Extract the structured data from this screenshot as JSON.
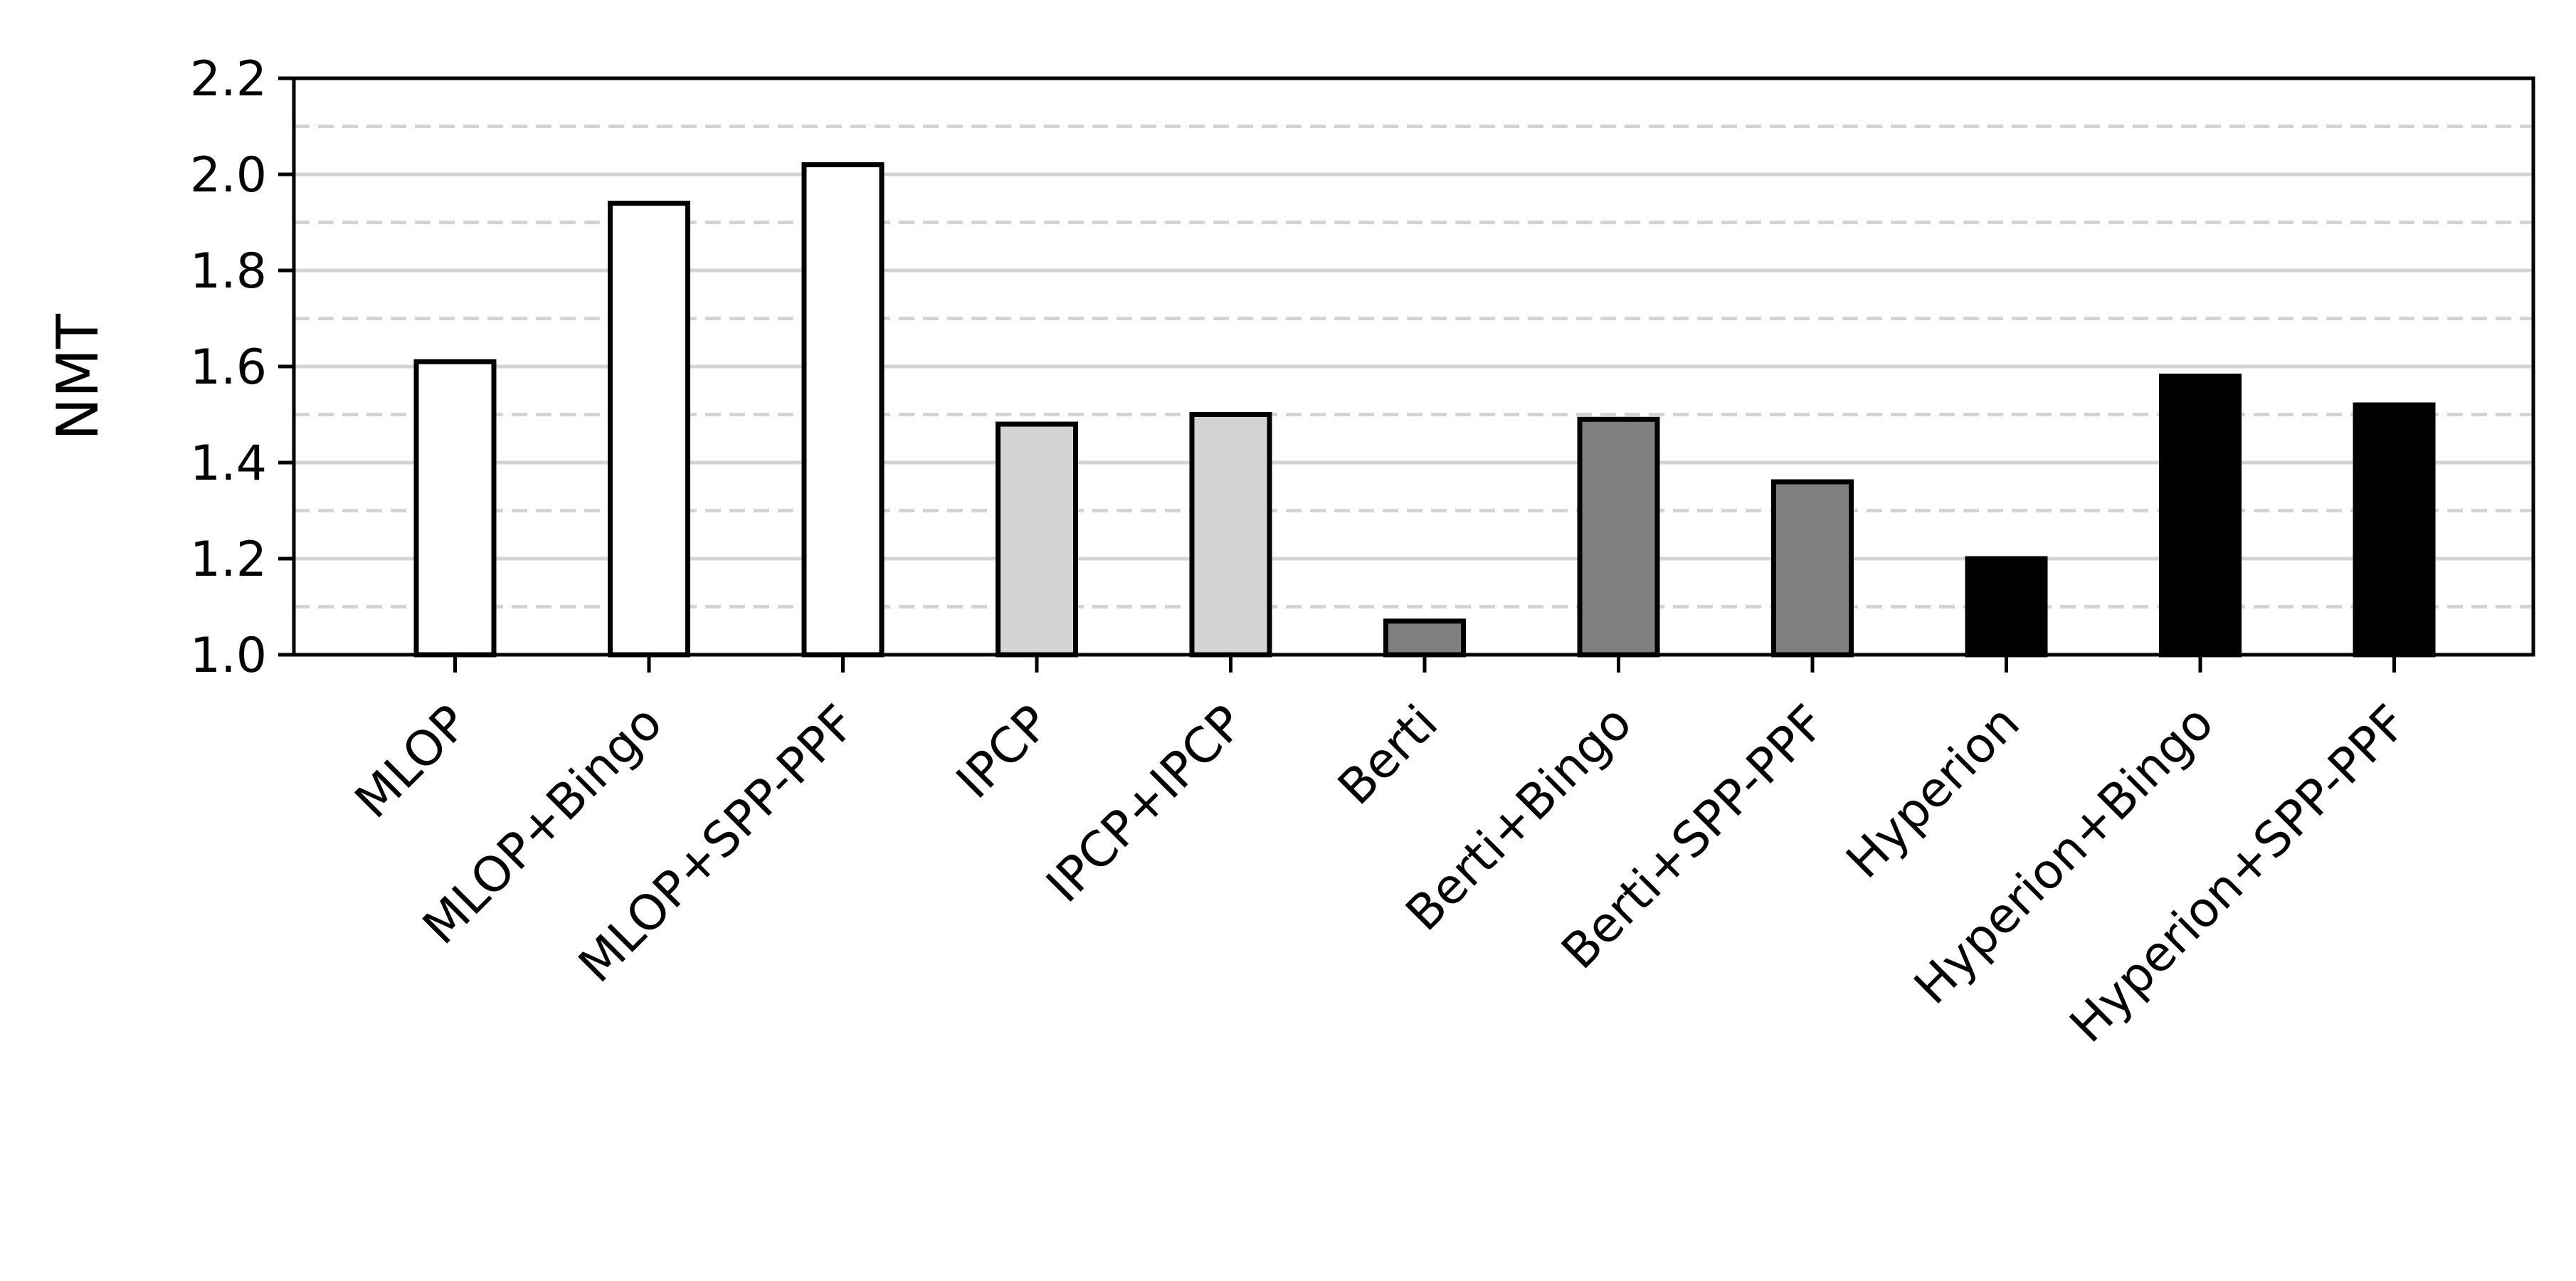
{
  "chart_data": {
    "type": "bar",
    "title": "",
    "xlabel": "",
    "ylabel": "NMT",
    "ylim": [
      1.0,
      2.2
    ],
    "yticks": [
      "1.0",
      "1.2",
      "1.4",
      "1.6",
      "1.8",
      "2.0",
      "2.2"
    ],
    "grid": {
      "major": [
        1.2,
        1.4,
        1.6,
        1.8,
        2.0
      ],
      "minor_dashed": [
        1.1,
        1.3,
        1.5,
        1.7,
        1.9,
        2.1
      ],
      "color": "#d3d3d3"
    },
    "categories": [
      "MLOP",
      "MLOP+Bingo",
      "MLOP+SPP-PPF",
      "IPCP",
      "IPCP+IPCP",
      "Berti",
      "Berti+Bingo",
      "Berti+SPP-PPF",
      "Hyperion",
      "Hyperion+Bingo",
      "Hyperion+SPP-PPF"
    ],
    "values": [
      1.61,
      1.94,
      2.02,
      1.48,
      1.5,
      1.07,
      1.49,
      1.36,
      1.2,
      1.58,
      1.52
    ],
    "colors": [
      "#ffffff",
      "#ffffff",
      "#ffffff",
      "#d3d3d3",
      "#d3d3d3",
      "#808080",
      "#808080",
      "#808080",
      "#000000",
      "#000000",
      "#000000"
    ],
    "edge_color": "#000000"
  }
}
